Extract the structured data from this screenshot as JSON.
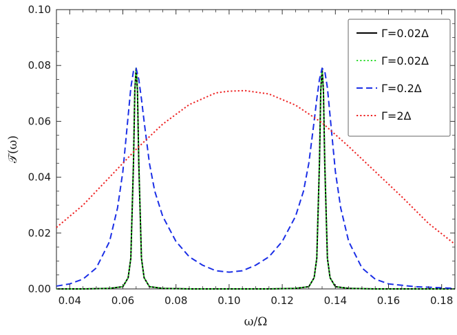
{
  "chart_data": {
    "type": "line",
    "xlabel": "ω/Ω",
    "ylabel": "𝒯(ω)",
    "xlim": [
      0.035,
      0.185
    ],
    "ylim": [
      0,
      0.1
    ],
    "xticks": [
      0.04,
      0.06,
      0.08,
      0.1,
      0.12,
      0.14,
      0.16,
      0.18
    ],
    "xtick_labels": [
      "0.04",
      "0.06",
      "0.08",
      "0.10",
      "0.12",
      "0.14",
      "0.16",
      "0.18"
    ],
    "yticks": [
      0,
      0.02,
      0.04,
      0.06,
      0.08,
      0.1
    ],
    "ytick_labels": [
      "0.00",
      "0.02",
      "0.04",
      "0.06",
      "0.08",
      "0.10"
    ],
    "grid": false,
    "legend_position": "top-right",
    "series": [
      {
        "name": "Γ=0.02Δ",
        "color": "#000000",
        "style": "solid",
        "x": [
          0.035,
          0.045,
          0.055,
          0.06,
          0.062,
          0.063,
          0.064,
          0.0645,
          0.065,
          0.0655,
          0.066,
          0.067,
          0.068,
          0.07,
          0.075,
          0.085,
          0.1,
          0.115,
          0.125,
          0.13,
          0.132,
          0.133,
          0.134,
          0.1345,
          0.135,
          0.1355,
          0.136,
          0.137,
          0.138,
          0.14,
          0.145,
          0.155,
          0.17,
          0.185
        ],
        "y": [
          0.0,
          0.0,
          0.0002,
          0.0008,
          0.004,
          0.011,
          0.045,
          0.071,
          0.079,
          0.071,
          0.045,
          0.011,
          0.004,
          0.0008,
          0.0002,
          0.0,
          0.0,
          0.0,
          0.0002,
          0.0008,
          0.004,
          0.011,
          0.045,
          0.071,
          0.079,
          0.071,
          0.045,
          0.011,
          0.004,
          0.0008,
          0.0002,
          0.0,
          0.0,
          0.0
        ]
      },
      {
        "name": "Γ=0.02Δ",
        "color": "#33dd33",
        "style": "dotted",
        "x": [
          0.035,
          0.045,
          0.055,
          0.06,
          0.062,
          0.063,
          0.064,
          0.0645,
          0.065,
          0.0655,
          0.066,
          0.067,
          0.068,
          0.07,
          0.075,
          0.085,
          0.1,
          0.115,
          0.125,
          0.13,
          0.132,
          0.133,
          0.134,
          0.1345,
          0.135,
          0.1355,
          0.136,
          0.137,
          0.138,
          0.14,
          0.145,
          0.155,
          0.17,
          0.185
        ],
        "y": [
          0.0,
          0.0,
          0.0002,
          0.0008,
          0.004,
          0.011,
          0.045,
          0.071,
          0.079,
          0.071,
          0.045,
          0.011,
          0.004,
          0.0008,
          0.0002,
          0.0,
          0.0,
          0.0,
          0.0002,
          0.0008,
          0.004,
          0.011,
          0.045,
          0.071,
          0.079,
          0.071,
          0.045,
          0.011,
          0.004,
          0.0008,
          0.0002,
          0.0,
          0.0,
          0.0
        ]
      },
      {
        "name": "Γ=0.2Δ",
        "color": "#1a2ee6",
        "style": "dashed",
        "x": [
          0.035,
          0.04,
          0.045,
          0.05,
          0.055,
          0.058,
          0.06,
          0.062,
          0.063,
          0.064,
          0.065,
          0.066,
          0.067,
          0.068,
          0.07,
          0.072,
          0.075,
          0.08,
          0.085,
          0.09,
          0.095,
          0.1,
          0.105,
          0.11,
          0.115,
          0.12,
          0.125,
          0.128,
          0.13,
          0.132,
          0.133,
          0.134,
          0.135,
          0.136,
          0.137,
          0.138,
          0.14,
          0.142,
          0.145,
          0.15,
          0.155,
          0.16,
          0.17,
          0.185
        ],
        "y": [
          0.001,
          0.0018,
          0.0035,
          0.0075,
          0.017,
          0.029,
          0.042,
          0.062,
          0.072,
          0.078,
          0.079,
          0.075,
          0.068,
          0.06,
          0.045,
          0.035,
          0.026,
          0.017,
          0.0115,
          0.0085,
          0.0065,
          0.006,
          0.0065,
          0.0085,
          0.0115,
          0.017,
          0.026,
          0.035,
          0.045,
          0.06,
          0.068,
          0.075,
          0.079,
          0.078,
          0.072,
          0.062,
          0.042,
          0.029,
          0.017,
          0.0075,
          0.0035,
          0.0018,
          0.0008,
          0.0002
        ]
      },
      {
        "name": "Γ=2Δ",
        "color": "#ee2222",
        "style": "dotted",
        "x": [
          0.035,
          0.045,
          0.055,
          0.065,
          0.075,
          0.085,
          0.095,
          0.1,
          0.106,
          0.115,
          0.125,
          0.135,
          0.145,
          0.155,
          0.165,
          0.175,
          0.185
        ],
        "y": [
          0.022,
          0.03,
          0.04,
          0.05,
          0.059,
          0.066,
          0.0702,
          0.0708,
          0.071,
          0.0698,
          0.0658,
          0.0595,
          0.051,
          0.042,
          0.033,
          0.0235,
          0.016
        ]
      }
    ]
  }
}
